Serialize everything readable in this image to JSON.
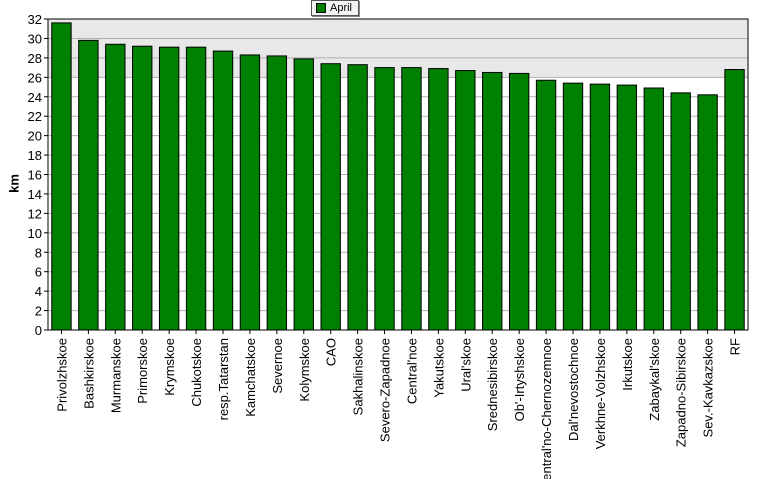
{
  "chart_data": {
    "type": "bar",
    "title": "",
    "xlabel": "",
    "ylabel": "km",
    "ylim": [
      0,
      32
    ],
    "ytick_step": 2,
    "grid": true,
    "legend_position": "top-center",
    "categories": [
      "Privolzhskoe",
      "Bashkirskoe",
      "Murmanskoe",
      "Primorskoe",
      "Krymskoe",
      "Chukotskoe",
      "resp.Tatarstan",
      "Kamchatskoe",
      "Severnoe",
      "Kolymskoe",
      "CAO",
      "Sakhalinskoe",
      "Severo-Zapadnoe",
      "Central'noe",
      "Yakutskoe",
      "Ural'skoe",
      "Srednesibirskoe",
      "Ob'-Irtyshskoe",
      "Central'no-Chernozemnoe",
      "Dal'nevostochnoe",
      "Verkhne-Volzhskoe",
      "Irkutskoe",
      "Zabaykal'skoe",
      "Zapadno-Sibirskoe",
      "Sev.-Kavkazskoe",
      "RF"
    ],
    "series": [
      {
        "name": "April",
        "values": [
          31.6,
          29.8,
          29.4,
          29.2,
          29.1,
          29.1,
          28.7,
          28.3,
          28.2,
          27.9,
          27.4,
          27.3,
          27.0,
          27.0,
          26.9,
          26.7,
          26.5,
          26.4,
          25.7,
          25.4,
          25.3,
          25.2,
          24.9,
          24.4,
          24.2,
          26.8
        ]
      }
    ],
    "colors": {
      "bar": "#008000",
      "plot_bg": "#e8e8e8",
      "grid": "#b0b0b0"
    }
  }
}
